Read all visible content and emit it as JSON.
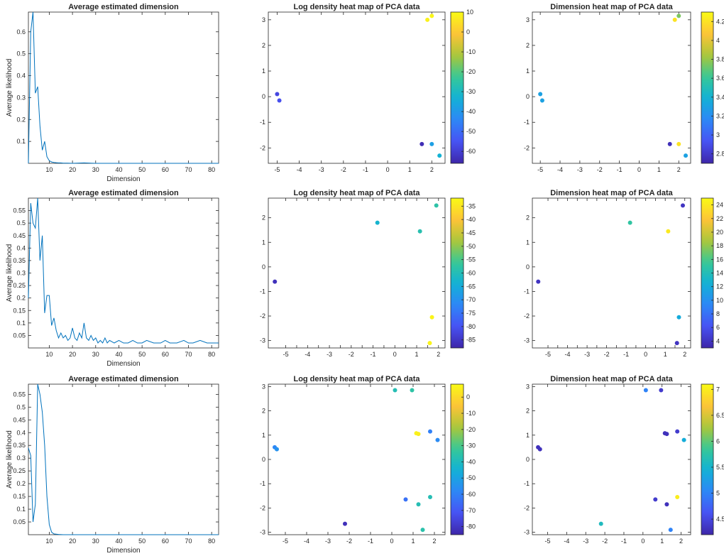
{
  "chart_data": [
    {
      "type": "line",
      "title": "Average estimated dimension",
      "xlabel": "Dimension",
      "ylabel": "Average likelihood",
      "xlim": [
        1,
        83
      ],
      "ylim": [
        0,
        0.69
      ],
      "xticks": [
        10,
        20,
        30,
        40,
        50,
        60,
        70,
        80
      ],
      "yticks": [
        0.1,
        0.2,
        0.3,
        0.4,
        0.5,
        0.6
      ],
      "series": [
        {
          "color": "#0072BD",
          "x": [
            1,
            2,
            3,
            4,
            5,
            6,
            7,
            8,
            9,
            10,
            11,
            12,
            13,
            14,
            15,
            16,
            18,
            20,
            25,
            30,
            40,
            50,
            60,
            70,
            83
          ],
          "y": [
            0.0,
            0.6,
            0.69,
            0.32,
            0.35,
            0.17,
            0.06,
            0.1,
            0.03,
            0.012,
            0.006,
            0.004,
            0.003,
            0.002,
            0.002,
            0.001,
            0.001,
            0.0,
            0.002,
            0.0,
            0.0,
            0.0,
            0.0,
            0.0,
            0.0
          ]
        }
      ]
    },
    {
      "type": "scatter",
      "title": "Log density heat map of PCA data",
      "xlim": [
        -5.4,
        2.6
      ],
      "ylim": [
        -2.6,
        3.3
      ],
      "xticks": [
        -5,
        -4,
        -3,
        -2,
        -1,
        0,
        1,
        2
      ],
      "yticks": [
        -2,
        -1,
        0,
        1,
        2,
        3
      ],
      "colorbar": {
        "min": -66,
        "max": 10,
        "ticks": [
          10,
          0,
          -10,
          -20,
          -30,
          -40,
          -50,
          -60
        ]
      },
      "points": [
        {
          "x": -5.0,
          "y": 0.1,
          "value": -58
        },
        {
          "x": -4.9,
          "y": -0.15,
          "value": -56
        },
        {
          "x": 1.8,
          "y": 3.0,
          "value": 8
        },
        {
          "x": 2.0,
          "y": 3.15,
          "value": 9
        },
        {
          "x": 1.55,
          "y": -1.85,
          "value": -64
        },
        {
          "x": 2.0,
          "y": -1.85,
          "value": -38
        },
        {
          "x": 2.35,
          "y": -2.3,
          "value": -33
        }
      ]
    },
    {
      "type": "scatter",
      "title": "Dimension heat map of PCA data",
      "xlim": [
        -5.4,
        2.6
      ],
      "ylim": [
        -2.6,
        3.3
      ],
      "xticks": [
        -5,
        -4,
        -3,
        -2,
        -1,
        0,
        1,
        2
      ],
      "yticks": [
        -2,
        -1,
        0,
        1,
        2,
        3
      ],
      "colorbar": {
        "min": 2.7,
        "max": 4.3,
        "ticks": [
          4.2,
          4,
          3.8,
          3.6,
          3.4,
          3.2,
          3,
          2.8
        ]
      },
      "points": [
        {
          "x": -5.0,
          "y": 0.1,
          "value": 3.3
        },
        {
          "x": -4.9,
          "y": -0.15,
          "value": 3.3
        },
        {
          "x": 1.8,
          "y": 3.0,
          "value": 4.2
        },
        {
          "x": 2.0,
          "y": 3.15,
          "value": 3.75
        },
        {
          "x": 1.55,
          "y": -1.85,
          "value": 2.75
        },
        {
          "x": 2.0,
          "y": -1.85,
          "value": 4.2
        },
        {
          "x": 2.35,
          "y": -2.3,
          "value": 3.3
        }
      ]
    },
    {
      "type": "line",
      "title": "Average estimated dimension",
      "xlabel": "Dimension",
      "ylabel": "Average likelihood",
      "xlim": [
        1,
        83
      ],
      "ylim": [
        0,
        0.6
      ],
      "xticks": [
        10,
        20,
        30,
        40,
        50,
        60,
        70,
        80
      ],
      "yticks": [
        0.05,
        0.1,
        0.15,
        0.2,
        0.25,
        0.3,
        0.35,
        0.4,
        0.45,
        0.5,
        0.55
      ],
      "series": [
        {
          "color": "#0072BD",
          "x": [
            1,
            2,
            3,
            4,
            5,
            6,
            7,
            8,
            9,
            10,
            11,
            12,
            13,
            14,
            15,
            16,
            17,
            18,
            19,
            20,
            21,
            22,
            23,
            24,
            25,
            26,
            27,
            28,
            29,
            30,
            31,
            32,
            33,
            34,
            35,
            36,
            38,
            40,
            42,
            44,
            46,
            48,
            50,
            52,
            55,
            58,
            60,
            62,
            65,
            68,
            70,
            72,
            75,
            78,
            80,
            82,
            83
          ],
          "y": [
            0.2,
            0.58,
            0.5,
            0.48,
            0.6,
            0.35,
            0.45,
            0.14,
            0.21,
            0.21,
            0.09,
            0.12,
            0.07,
            0.04,
            0.06,
            0.04,
            0.05,
            0.03,
            0.04,
            0.08,
            0.04,
            0.03,
            0.06,
            0.04,
            0.1,
            0.04,
            0.03,
            0.05,
            0.03,
            0.04,
            0.02,
            0.03,
            0.02,
            0.04,
            0.02,
            0.03,
            0.02,
            0.03,
            0.02,
            0.02,
            0.03,
            0.02,
            0.02,
            0.03,
            0.02,
            0.02,
            0.03,
            0.02,
            0.02,
            0.03,
            0.02,
            0.02,
            0.03,
            0.02,
            0.02,
            0.02,
            0.02
          ]
        }
      ]
    },
    {
      "type": "scatter",
      "title": "Log density heat map of PCA data",
      "xlim": [
        -5.8,
        2.3
      ],
      "ylim": [
        -3.3,
        2.8
      ],
      "xticks": [
        -5,
        -4.5,
        -4,
        -3.5,
        -3,
        -2.5,
        -2,
        -1.5,
        -1,
        -0.5,
        0,
        0.5,
        1,
        1.5,
        2
      ],
      "xticklabels": [
        "-5",
        "",
        "-4",
        "",
        "-3",
        "",
        "-2",
        "",
        "-1",
        "",
        "0",
        "",
        "1",
        "",
        "2"
      ],
      "xticklabels_hidden": true,
      "yticks": [
        -3,
        -2,
        -1,
        0,
        1,
        2
      ],
      "colorbar": {
        "min": -88,
        "max": -32,
        "ticks": [
          -35,
          -40,
          -45,
          -50,
          -55,
          -60,
          -65,
          -70,
          -75,
          -80,
          -85
        ]
      },
      "points": [
        {
          "x": -5.5,
          "y": -0.6,
          "value": -86
        },
        {
          "x": -0.8,
          "y": 1.8,
          "value": -63
        },
        {
          "x": 1.15,
          "y": 1.45,
          "value": -59
        },
        {
          "x": 1.9,
          "y": 2.5,
          "value": -58
        },
        {
          "x": 1.7,
          "y": -2.05,
          "value": -33
        },
        {
          "x": 1.6,
          "y": -3.1,
          "value": -33
        }
      ]
    },
    {
      "type": "scatter",
      "title": "Dimension heat map of PCA data",
      "xlim": [
        -5.8,
        2.3
      ],
      "ylim": [
        -3.3,
        2.8
      ],
      "xticks": [
        -5,
        -4.5,
        -4,
        -3.5,
        -3,
        -2.5,
        -2,
        -1.5,
        -1,
        -0.5,
        0,
        0.5,
        1,
        1.5,
        2
      ],
      "xticklabels": [
        "-5",
        "",
        "-4",
        "",
        "-3",
        "",
        "-2",
        "",
        "-1",
        "",
        "0",
        "",
        "1",
        "",
        "2"
      ],
      "xticklabels_hidden": true,
      "yticks": [
        -3,
        -2,
        -1,
        0,
        1,
        2
      ],
      "colorbar": {
        "min": 3,
        "max": 25,
        "ticks": [
          24,
          22,
          20,
          18,
          16,
          14,
          12,
          10,
          8,
          6,
          4
        ]
      },
      "points": [
        {
          "x": -5.5,
          "y": -0.6,
          "value": 4
        },
        {
          "x": -0.8,
          "y": 1.8,
          "value": 15
        },
        {
          "x": 1.15,
          "y": 1.45,
          "value": 24
        },
        {
          "x": 1.9,
          "y": 2.5,
          "value": 4
        },
        {
          "x": 1.7,
          "y": -2.05,
          "value": 12
        },
        {
          "x": 1.6,
          "y": -3.1,
          "value": 4
        }
      ]
    },
    {
      "type": "line",
      "title": "Average estimated dimension",
      "xlabel": "Dimension",
      "ylabel": "Average likelihood",
      "xlim": [
        1,
        83
      ],
      "ylim": [
        0,
        0.59
      ],
      "xticks": [
        10,
        20,
        30,
        40,
        50,
        60,
        70,
        80
      ],
      "yticks": [
        0.05,
        0.1,
        0.15,
        0.2,
        0.25,
        0.3,
        0.35,
        0.4,
        0.45,
        0.5,
        0.55
      ],
      "series": [
        {
          "color": "#0072BD",
          "x": [
            1,
            2,
            3,
            4,
            5,
            6,
            7,
            8,
            9,
            10,
            11,
            12,
            14,
            16,
            20,
            30,
            40,
            50,
            60,
            70,
            83
          ],
          "y": [
            0.34,
            0.31,
            0.05,
            0.12,
            0.59,
            0.55,
            0.48,
            0.35,
            0.15,
            0.04,
            0.01,
            0.003,
            0.001,
            0.0,
            0.0,
            0.0,
            0.0,
            0.0,
            0.0,
            0.0,
            0.0
          ]
        }
      ]
    },
    {
      "type": "scatter",
      "title": "Log density heat map of PCA data",
      "xlim": [
        -5.8,
        2.5
      ],
      "ylim": [
        -3.1,
        3.1
      ],
      "xticks": [
        -5,
        -4,
        -3,
        -2,
        -1,
        0,
        1,
        2
      ],
      "yticks": [
        -3,
        -2,
        -1,
        0,
        1,
        2,
        3
      ],
      "colorbar": {
        "min": -85,
        "max": 8,
        "ticks": [
          0,
          -10,
          -20,
          -30,
          -40,
          -50,
          -60,
          -70,
          -80
        ]
      },
      "points": [
        {
          "x": -5.5,
          "y": 0.5,
          "value": -58
        },
        {
          "x": -5.4,
          "y": 0.42,
          "value": -55
        },
        {
          "x": 0.15,
          "y": 2.85,
          "value": -38
        },
        {
          "x": 0.95,
          "y": 2.85,
          "value": -35
        },
        {
          "x": 1.15,
          "y": 1.08,
          "value": 6
        },
        {
          "x": 1.25,
          "y": 1.05,
          "value": 5
        },
        {
          "x": 1.8,
          "y": 1.15,
          "value": -60
        },
        {
          "x": 2.15,
          "y": 0.8,
          "value": -57
        },
        {
          "x": 0.65,
          "y": -1.65,
          "value": -64
        },
        {
          "x": 1.25,
          "y": -1.85,
          "value": -38
        },
        {
          "x": 1.8,
          "y": -1.55,
          "value": -38
        },
        {
          "x": 1.45,
          "y": -2.9,
          "value": -36
        },
        {
          "x": -2.2,
          "y": -2.65,
          "value": -82
        }
      ]
    },
    {
      "type": "scatter",
      "title": "Dimension heat map of PCA data",
      "xlim": [
        -5.8,
        2.5
      ],
      "ylim": [
        -3.1,
        3.1
      ],
      "xticks": [
        -5,
        -4,
        -3,
        -2,
        -1,
        0,
        1,
        2
      ],
      "yticks": [
        -3,
        -2,
        -1,
        0,
        1,
        2,
        3
      ],
      "colorbar": {
        "min": 4.2,
        "max": 7.1,
        "ticks": [
          7,
          6.5,
          6,
          5.5,
          5,
          4.5
        ]
      },
      "points": [
        {
          "x": -5.5,
          "y": 0.5,
          "value": 4.3
        },
        {
          "x": -5.4,
          "y": 0.42,
          "value": 4.3
        },
        {
          "x": 0.15,
          "y": 2.85,
          "value": 5.0
        },
        {
          "x": 0.95,
          "y": 2.85,
          "value": 4.4
        },
        {
          "x": 1.15,
          "y": 1.08,
          "value": 4.3
        },
        {
          "x": 1.25,
          "y": 1.05,
          "value": 4.3
        },
        {
          "x": 1.8,
          "y": 1.15,
          "value": 4.4
        },
        {
          "x": 2.15,
          "y": 0.8,
          "value": 5.4
        },
        {
          "x": 0.65,
          "y": -1.65,
          "value": 4.4
        },
        {
          "x": 1.25,
          "y": -1.85,
          "value": 4.3
        },
        {
          "x": 1.8,
          "y": -1.55,
          "value": 7.0
        },
        {
          "x": 1.45,
          "y": -2.9,
          "value": 5.0
        },
        {
          "x": -2.2,
          "y": -2.65,
          "value": 5.6
        }
      ]
    }
  ]
}
